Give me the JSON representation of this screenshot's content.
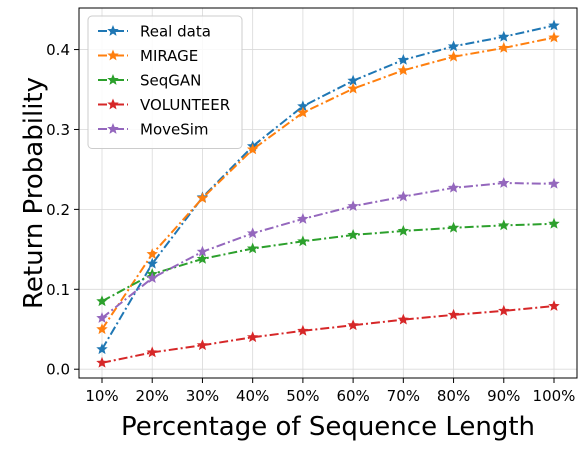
{
  "chart_data": {
    "type": "line",
    "title": "",
    "xlabel": "Percentage of Sequence Length",
    "ylabel": "Return Probability",
    "categories": [
      "10%",
      "20%",
      "30%",
      "40%",
      "50%",
      "60%",
      "70%",
      "80%",
      "90%",
      "100%"
    ],
    "yticks": [
      0.0,
      0.1,
      0.2,
      0.3,
      0.4
    ],
    "ytick_labels": [
      "0.0",
      "0.1",
      "0.2",
      "0.3",
      "0.4"
    ],
    "ylim": [
      -0.011,
      0.452
    ],
    "grid": true,
    "legend_position": "top-left",
    "line_style": "dash-dot",
    "marker": "star",
    "series": [
      {
        "name": "Real data",
        "color": "#1f77b4",
        "values": [
          0.025,
          0.132,
          0.215,
          0.279,
          0.329,
          0.361,
          0.387,
          0.404,
          0.416,
          0.43
        ]
      },
      {
        "name": "MIRAGE",
        "color": "#ff7f0e",
        "values": [
          0.05,
          0.144,
          0.214,
          0.275,
          0.321,
          0.351,
          0.374,
          0.391,
          0.402,
          0.415
        ]
      },
      {
        "name": "SeqGAN",
        "color": "#2ca02c",
        "values": [
          0.085,
          0.119,
          0.138,
          0.151,
          0.16,
          0.168,
          0.173,
          0.177,
          0.18,
          0.182
        ]
      },
      {
        "name": "VOLUNTEER",
        "color": "#d62728",
        "values": [
          0.008,
          0.021,
          0.03,
          0.04,
          0.048,
          0.055,
          0.062,
          0.068,
          0.073,
          0.079
        ]
      },
      {
        "name": "MoveSim",
        "color": "#9467bd",
        "values": [
          0.064,
          0.114,
          0.147,
          0.17,
          0.188,
          0.204,
          0.216,
          0.227,
          0.233,
          0.232
        ]
      }
    ]
  }
}
